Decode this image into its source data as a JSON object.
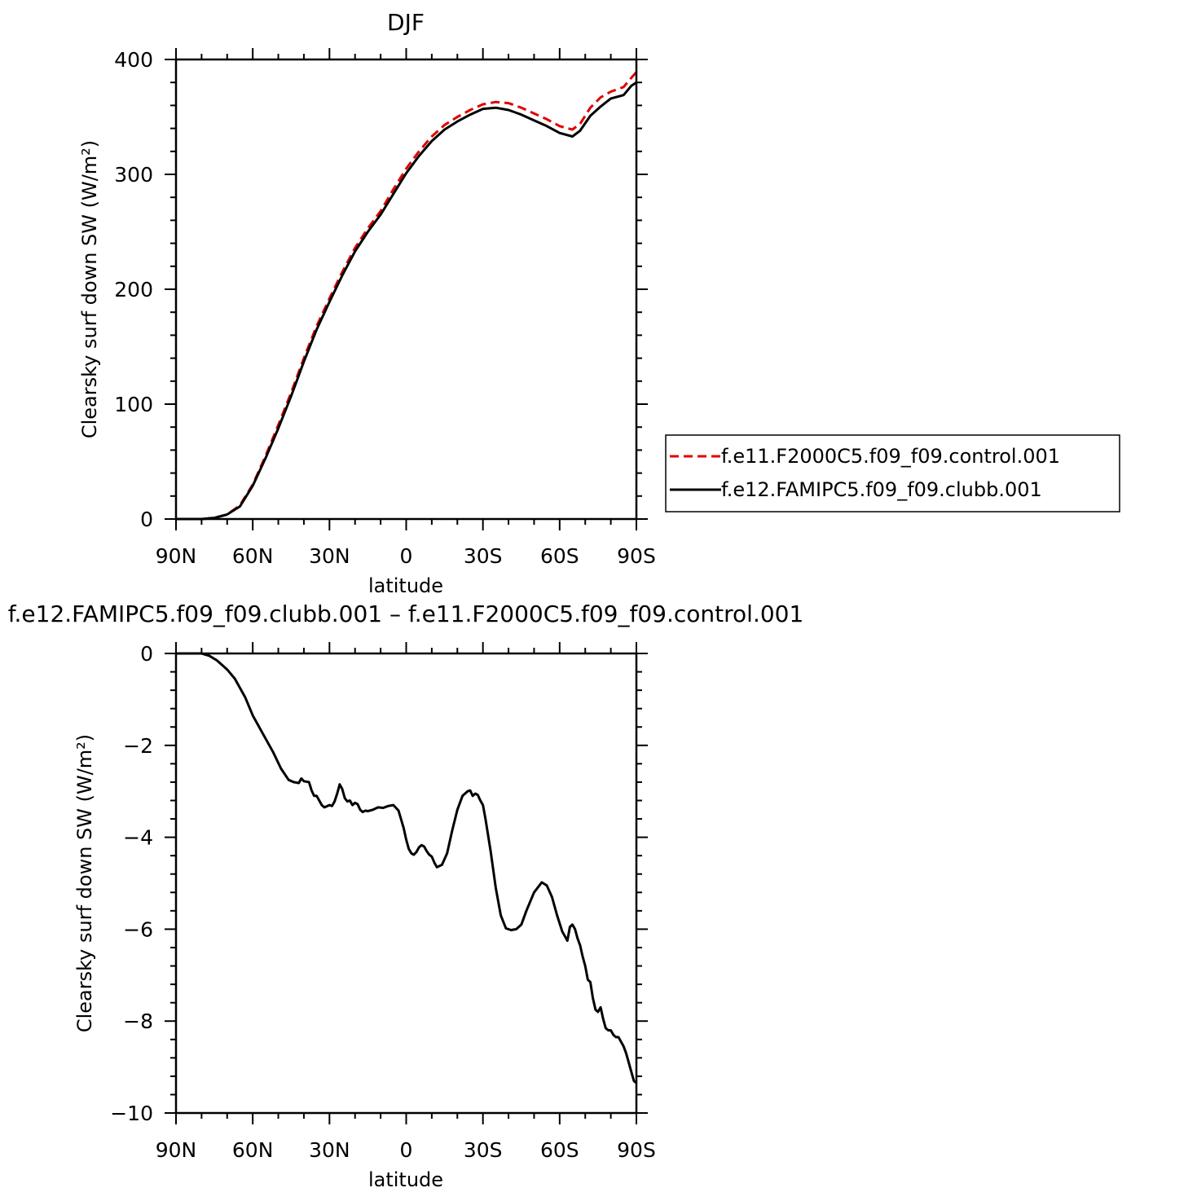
{
  "chart_data": [
    {
      "type": "line",
      "title": "DJF",
      "xlabel": "latitude",
      "ylabel": "Clearsky surf down SW (W/m²)",
      "xlim": [
        90,
        -90
      ],
      "ylim": [
        0,
        400
      ],
      "x_ticks": [
        "90N",
        "60N",
        "30N",
        "0",
        "30S",
        "60S",
        "90S"
      ],
      "x_tick_values": [
        90,
        60,
        30,
        0,
        -30,
        -60,
        -90
      ],
      "y_ticks": [
        "0",
        "100",
        "200",
        "300",
        "400"
      ],
      "y_tick_values": [
        0,
        100,
        200,
        300,
        400
      ],
      "legend_position": "right",
      "series": [
        {
          "name": "f.e11.F2000C5.f09_f09.control.001",
          "color": "#e00000",
          "dash": "dashed",
          "lat": [
            90,
            80,
            75,
            70,
            65,
            60,
            55,
            50,
            45,
            40,
            35,
            30,
            25,
            20,
            15,
            10,
            5,
            0,
            -5,
            -10,
            -15,
            -20,
            -25,
            -30,
            -35,
            -40,
            -45,
            -50,
            -55,
            -60,
            -65,
            -68,
            -72,
            -76,
            -80,
            -85,
            -88,
            -90
          ],
          "values": [
            0,
            0,
            1,
            4,
            12,
            30,
            55,
            82,
            110,
            140,
            168,
            192,
            215,
            236,
            253,
            268,
            287,
            305,
            320,
            333,
            343,
            350,
            356,
            361,
            363,
            362,
            358,
            353,
            348,
            342,
            339,
            344,
            358,
            367,
            372,
            376,
            384,
            389
          ]
        },
        {
          "name": "f.e12.FAMIPC5.f09_f09.clubb.001",
          "color": "#000000",
          "dash": "solid",
          "lat": [
            90,
            80,
            75,
            70,
            65,
            60,
            55,
            50,
            45,
            40,
            35,
            30,
            25,
            20,
            15,
            10,
            5,
            0,
            -5,
            -10,
            -15,
            -20,
            -25,
            -30,
            -35,
            -40,
            -45,
            -50,
            -55,
            -60,
            -65,
            -68,
            -72,
            -76,
            -80,
            -85,
            -88,
            -90
          ],
          "values": [
            0,
            0,
            1,
            4,
            11,
            29,
            53,
            79,
            107,
            137,
            165,
            189,
            212,
            233,
            250,
            265,
            283,
            301,
            316,
            329,
            339,
            346,
            352,
            357,
            358,
            356,
            352,
            347,
            342,
            336,
            333,
            338,
            351,
            359,
            366,
            369,
            377,
            380
          ]
        }
      ]
    },
    {
      "type": "line",
      "title": "f.e12.FAMIPC5.f09_f09.clubb.001 – f.e11.F2000C5.f09_f09.control.001",
      "xlabel": "latitude",
      "ylabel": "Clearsky surf down SW (W/m²)",
      "xlim": [
        90,
        -90
      ],
      "ylim": [
        -10,
        0
      ],
      "x_ticks": [
        "90N",
        "60N",
        "30N",
        "0",
        "30S",
        "60S",
        "90S"
      ],
      "x_tick_values": [
        90,
        60,
        30,
        0,
        -30,
        -60,
        -90
      ],
      "y_ticks": [
        "0",
        "−2",
        "−4",
        "−6",
        "−8",
        "−10"
      ],
      "y_tick_values": [
        0,
        -2,
        -4,
        -6,
        -8,
        -10
      ],
      "series": [
        {
          "color": "#000000",
          "dash": "solid",
          "lat": [
            90,
            85,
            80,
            77,
            74,
            70,
            67,
            63,
            60,
            56,
            52,
            49,
            46,
            44,
            42,
            41,
            40,
            38,
            37,
            36,
            35,
            34,
            33,
            32,
            30,
            29,
            28,
            27,
            26,
            25,
            24,
            23,
            22,
            21,
            20,
            19,
            18,
            17,
            16,
            15,
            13,
            11,
            9,
            7,
            5,
            3,
            1,
            0,
            -1,
            -2,
            -3,
            -4,
            -5,
            -6,
            -7,
            -8,
            -9,
            -10,
            -11,
            -12,
            -14,
            -16,
            -18,
            -20,
            -22,
            -24,
            -25,
            -26,
            -27,
            -28,
            -29,
            -30,
            -31,
            -33,
            -35,
            -37,
            -39,
            -41,
            -43,
            -45,
            -47,
            -50,
            -53,
            -55,
            -57,
            -59,
            -61,
            -63,
            -64,
            -65,
            -66,
            -67,
            -68,
            -69,
            -70,
            -71,
            -72,
            -73,
            -74,
            -75,
            -76,
            -77,
            -78,
            -79,
            -80,
            -81,
            -82,
            -83,
            -84,
            -85,
            -86,
            -87,
            -88,
            -89,
            -90
          ],
          "values": [
            0,
            0,
            0,
            -0.05,
            -0.15,
            -0.35,
            -0.55,
            -0.95,
            -1.35,
            -1.75,
            -2.15,
            -2.5,
            -2.75,
            -2.8,
            -2.82,
            -2.72,
            -2.78,
            -2.8,
            -2.98,
            -3.1,
            -3.1,
            -3.2,
            -3.3,
            -3.35,
            -3.3,
            -3.32,
            -3.22,
            -3.05,
            -2.85,
            -2.95,
            -3.15,
            -3.22,
            -3.2,
            -3.3,
            -3.25,
            -3.28,
            -3.4,
            -3.45,
            -3.42,
            -3.43,
            -3.4,
            -3.35,
            -3.36,
            -3.32,
            -3.3,
            -3.42,
            -3.8,
            -4.05,
            -4.25,
            -4.35,
            -4.38,
            -4.32,
            -4.22,
            -4.17,
            -4.2,
            -4.3,
            -4.38,
            -4.42,
            -4.55,
            -4.65,
            -4.6,
            -4.35,
            -3.85,
            -3.4,
            -3.1,
            -3.0,
            -2.98,
            -3.1,
            -3.05,
            -3.08,
            -3.2,
            -3.3,
            -3.6,
            -4.3,
            -5.1,
            -5.7,
            -5.98,
            -6.02,
            -6.0,
            -5.9,
            -5.6,
            -5.2,
            -4.98,
            -5.05,
            -5.3,
            -5.7,
            -6.05,
            -6.25,
            -5.95,
            -5.9,
            -6.0,
            -6.2,
            -6.35,
            -6.6,
            -6.8,
            -7.1,
            -7.15,
            -7.5,
            -7.75,
            -7.8,
            -7.7,
            -7.95,
            -8.15,
            -8.2,
            -8.2,
            -8.3,
            -8.35,
            -8.35,
            -8.45,
            -8.55,
            -8.7,
            -8.9,
            -9.1,
            -9.3,
            -9.35
          ]
        }
      ]
    }
  ],
  "legend": {
    "items": [
      {
        "label": "f.e11.F2000C5.f09_f09.control.001",
        "color": "#e00000",
        "dash": "dashed"
      },
      {
        "label": "f.e12.FAMIPC5.f09_f09.clubb.001",
        "color": "#000000",
        "dash": "solid"
      }
    ]
  }
}
